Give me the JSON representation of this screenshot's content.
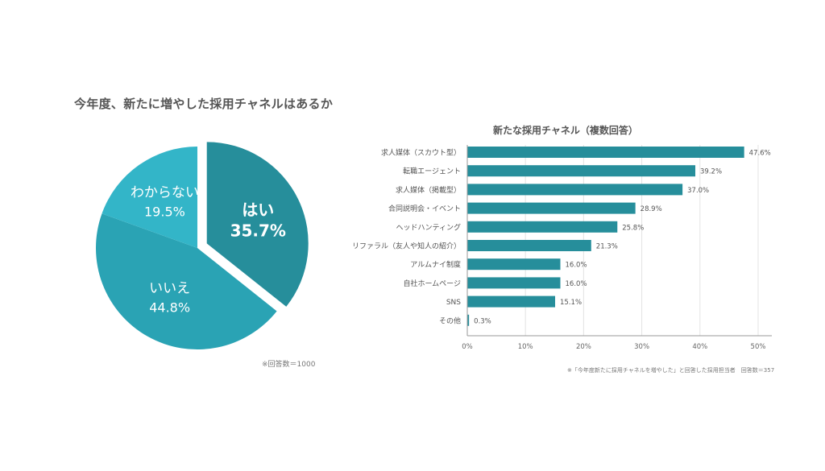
{
  "chart_data": [
    {
      "type": "pie",
      "title": "今年度、新たに増やした採用チャネルはあるか",
      "categories": [
        "はい",
        "いいえ",
        "わからない"
      ],
      "values": [
        35.7,
        44.8,
        19.5
      ],
      "value_labels": [
        "35.7%",
        "44.8%",
        "19.5%"
      ],
      "colors": [
        "#268e9b",
        "#2aa3b4",
        "#33b5c8"
      ],
      "exploded_slice": "はい",
      "note": "※回答数＝1000"
    },
    {
      "type": "bar",
      "orientation": "horizontal",
      "title": "新たな採用チャネル（複数回答）",
      "categories": [
        "求人媒体（スカウト型）",
        "転職エージェント",
        "求人媒体（掲載型）",
        "合同説明会・イベント",
        "ヘッドハンティング",
        "リファラル（友人や知人の紹介）",
        "アルムナイ制度",
        "自社ホームページ",
        "SNS",
        "その他"
      ],
      "values": [
        47.6,
        39.2,
        37.0,
        28.9,
        25.8,
        21.3,
        16.0,
        16.0,
        15.1,
        0.3
      ],
      "value_labels": [
        "47.6%",
        "39.2%",
        "37.0%",
        "28.9%",
        "25.8%",
        "21.3%",
        "16.0%",
        "16.0%",
        "15.1%",
        "0.3%"
      ],
      "xlim": [
        0,
        50
      ],
      "xticks": [
        "0%",
        "10%",
        "20%",
        "30%",
        "40%",
        "50%"
      ],
      "grid": true,
      "bar_color": "#268e9b",
      "note": "※「今年度新たに採用チャネルを増やした」と回答した採用担当者　回答数＝357"
    }
  ]
}
